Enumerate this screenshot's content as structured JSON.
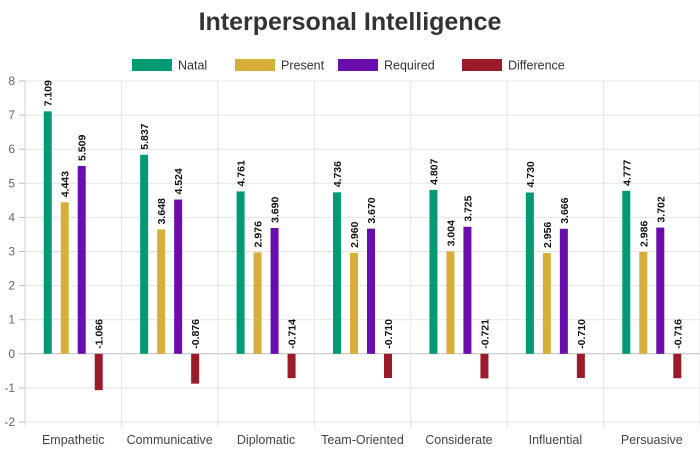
{
  "chart_data": {
    "type": "bar",
    "title": "Interpersonal Intelligence",
    "xlabel": "",
    "ylabel": "",
    "ylim": [
      -2,
      8
    ],
    "y_ticks": [
      "-2",
      "-1",
      "0",
      "1",
      "2",
      "3",
      "4",
      "5",
      "6",
      "7",
      "8"
    ],
    "grid": true,
    "legend_position": "top",
    "categories": [
      "Empathetic",
      "Communicative",
      "Diplomatic",
      "Team-Oriented",
      "Considerate",
      "Influential",
      "Persuasive"
    ],
    "series": [
      {
        "name": "Natal",
        "color": "#009a73",
        "values": [
          7.109,
          5.837,
          4.761,
          4.736,
          4.807,
          4.73,
          4.777
        ],
        "labels": [
          "7.109",
          "5.837",
          "4.761",
          "4.736",
          "4.807",
          "4.730",
          "4.777"
        ]
      },
      {
        "name": "Present",
        "color": "#d6af3a",
        "values": [
          4.443,
          3.648,
          2.976,
          2.96,
          3.004,
          2.956,
          2.986
        ],
        "labels": [
          "4.443",
          "3.648",
          "2.976",
          "2.960",
          "3.004",
          "2.956",
          "2.986"
        ]
      },
      {
        "name": "Required",
        "color": "#6a0dad",
        "values": [
          5.509,
          4.524,
          3.69,
          3.67,
          3.725,
          3.666,
          3.702
        ],
        "labels": [
          "5.509",
          "4.524",
          "3.690",
          "3.670",
          "3.725",
          "3.666",
          "3.702"
        ]
      },
      {
        "name": "Difference",
        "color": "#9b1b2b",
        "values": [
          -1.066,
          -0.876,
          -0.714,
          -0.71,
          -0.721,
          -0.71,
          -0.716
        ],
        "labels": [
          "-1.066",
          "-0.876",
          "-0.714",
          "-0.710",
          "-0.721",
          "-0.710",
          "-0.716"
        ]
      }
    ]
  }
}
